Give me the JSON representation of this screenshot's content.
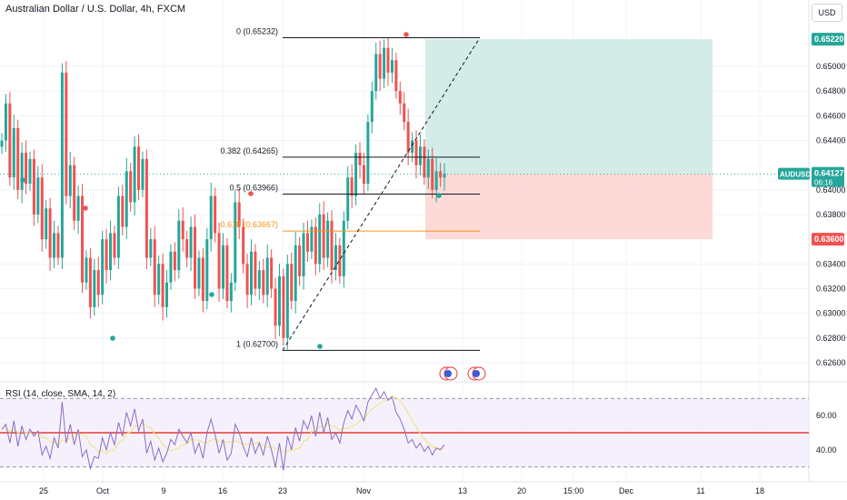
{
  "header": {
    "title": "Australian Dollar / U.S. Dollar, 4h, FXCM",
    "currency_button": "USD"
  },
  "rsi": {
    "label": "RSI (14, close, SMA, 14, 2)",
    "ticks": [
      "60.00",
      "40.00"
    ],
    "upper_band": 70,
    "lower_band": 30,
    "middle_line": 50
  },
  "colors": {
    "up": "#26a69a",
    "down": "#ef5350",
    "fib": "#131722",
    "fib_618": "#f7931a",
    "target_zone": "#cde9e4",
    "stop_zone": "#fcd3d1",
    "rsi_line": "#8c6cc4",
    "rsi_ma": "#f2e48c"
  },
  "chart_data": {
    "type": "candlestick",
    "symbol": "AUDUSD",
    "ylim": [
      0.625,
      0.654
    ],
    "y_ticks": [
      "0.65000",
      "0.64800",
      "0.64600",
      "0.64400",
      "0.64000",
      "0.63800",
      "0.63400",
      "0.63200",
      "0.63000",
      "0.62800",
      "0.62600"
    ],
    "x_ticks": [
      "25",
      "Oct",
      "9",
      "16",
      "23",
      "Nov",
      "13",
      "20",
      "15:00",
      "Dec",
      "11",
      "18"
    ],
    "fib_levels": [
      {
        "label": "0 (0.65232)",
        "value": 0.65232
      },
      {
        "label": "0.382 (0.64265)",
        "value": 0.64265
      },
      {
        "label": "0.5 (0.63966)",
        "value": 0.63966
      },
      {
        "label": "0.618 (0.63667)",
        "value": 0.63667
      },
      {
        "label": "1 (0.62700)",
        "value": 0.627
      }
    ],
    "position": {
      "target": 0.6522,
      "entry": 0.6413,
      "stop": 0.636,
      "target_label": "0.65220",
      "entry_label": "0.64130",
      "stop_label": "0.63600"
    },
    "last_price": {
      "symbol": "AUDUSD",
      "price_label": "0.64127",
      "countdown": "06:16"
    },
    "close_path": [
      0.644,
      0.647,
      0.641,
      0.645,
      0.64,
      0.643,
      0.6405,
      0.6425,
      0.638,
      0.641,
      0.636,
      0.6385,
      0.6345,
      0.6365,
      0.6345,
      0.6495,
      0.6395,
      0.642,
      0.6375,
      0.6395,
      0.6325,
      0.6345,
      0.6305,
      0.6335,
      0.6315,
      0.636,
      0.6335,
      0.6365,
      0.6345,
      0.6395,
      0.637,
      0.6415,
      0.639,
      0.6435,
      0.64,
      0.6425,
      0.6345,
      0.636,
      0.6315,
      0.634,
      0.6305,
      0.6325,
      0.635,
      0.6335,
      0.6375,
      0.636,
      0.6345,
      0.637,
      0.632,
      0.6345,
      0.631,
      0.636,
      0.6395,
      0.6365,
      0.632,
      0.6355,
      0.631,
      0.6325,
      0.639,
      0.637,
      0.634,
      0.6315,
      0.635,
      0.632,
      0.6335,
      0.6315,
      0.6345,
      0.632,
      0.629,
      0.633,
      0.628,
      0.634,
      0.631,
      0.6355,
      0.633,
      0.6365,
      0.635,
      0.637,
      0.634,
      0.638,
      0.6345,
      0.6375,
      0.6335,
      0.6355,
      0.633,
      0.6375,
      0.641,
      0.6395,
      0.643,
      0.642,
      0.6405,
      0.6455,
      0.648,
      0.651,
      0.649,
      0.6515,
      0.6495,
      0.6505,
      0.648,
      0.647,
      0.6455,
      0.643,
      0.644,
      0.642,
      0.6435,
      0.641,
      0.6425,
      0.64,
      0.6415,
      0.641,
      0.6413
    ],
    "rsi_values": [
      52,
      55,
      44,
      57,
      42,
      54,
      46,
      52,
      48,
      51,
      37,
      42,
      35,
      47,
      41,
      68,
      44,
      55,
      43,
      52,
      36,
      40,
      29,
      36,
      35,
      47,
      40,
      50,
      43,
      56,
      48,
      62,
      54,
      64,
      51,
      58,
      38,
      45,
      34,
      41,
      33,
      38,
      46,
      43,
      52,
      48,
      44,
      50,
      38,
      44,
      35,
      50,
      58,
      49,
      38,
      46,
      34,
      38,
      55,
      50,
      42,
      36,
      47,
      38,
      44,
      37,
      48,
      40,
      30,
      44,
      28,
      48,
      40,
      53,
      45,
      57,
      52,
      60,
      48,
      62,
      50,
      59,
      46,
      50,
      44,
      56,
      63,
      58,
      66,
      62,
      57,
      68,
      72,
      76,
      70,
      74,
      69,
      71,
      62,
      58,
      52,
      44,
      46,
      41,
      44,
      39,
      42,
      37,
      41,
      40,
      43
    ]
  }
}
